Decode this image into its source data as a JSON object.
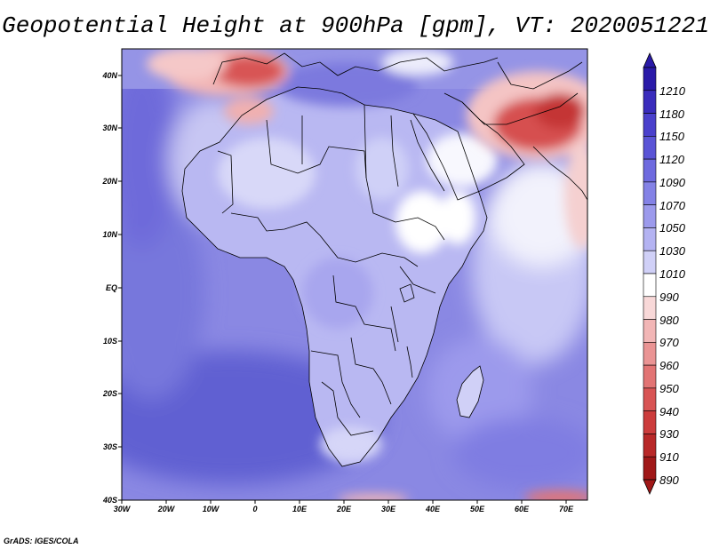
{
  "title": "Geopotential Height at 900hPa [gpm], VT: 2020051221",
  "credit": "GrADS: IGES/COLA",
  "axes": {
    "latitude_labels": [
      "40N",
      "30N",
      "20N",
      "10N",
      "EQ",
      "10S",
      "20S",
      "30S",
      "40S"
    ],
    "longitude_labels": [
      "30W",
      "20W",
      "10W",
      "0",
      "10E",
      "20E",
      "30E",
      "40E",
      "50E",
      "60E",
      "70E"
    ]
  },
  "colorbar": {
    "levels": [
      "1210",
      "1180",
      "1150",
      "1120",
      "1090",
      "1070",
      "1050",
      "1030",
      "1010",
      "990",
      "980",
      "970",
      "960",
      "950",
      "940",
      "930",
      "910",
      "890"
    ],
    "colors": [
      "#2a1aa8",
      "#3a2cbc",
      "#4a40cc",
      "#5a54d6",
      "#6e6adf",
      "#8482e6",
      "#9c9aec",
      "#b4b3f2",
      "#d0d0f7",
      "#ffffff",
      "#f8d8d8",
      "#f2b6b6",
      "#ea9494",
      "#e27474",
      "#d85454",
      "#cc3c3c",
      "#b82828",
      "#a01818"
    ]
  },
  "map": {
    "region": "Africa",
    "lon_range": [
      -30,
      75
    ],
    "lat_range": [
      -40,
      45
    ],
    "colors": {
      "ocean_low": "#6565d6",
      "ocean_mid": "#8a88e3",
      "land": "#b9b8f2",
      "land_light": "#d8d8f8",
      "high_pos": "#ffffff",
      "red_strong": "#cc3c3c",
      "red_mid": "#e58080",
      "red_light": "#f6cccc",
      "border": "#000000"
    }
  }
}
